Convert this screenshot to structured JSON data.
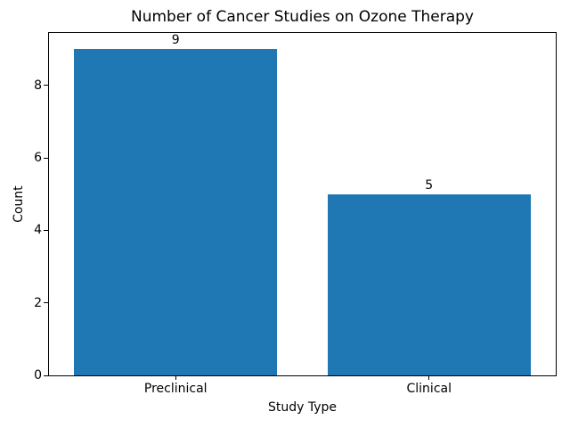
{
  "chart_data": {
    "type": "bar",
    "title": "Number of Cancer Studies on Ozone Therapy",
    "xlabel": "Study Type",
    "ylabel": "Count",
    "categories": [
      "Preclinical",
      "Clinical"
    ],
    "values": [
      9,
      5
    ],
    "bar_value_labels": [
      "9",
      "5"
    ],
    "yticks": [
      0,
      2,
      4,
      6,
      8
    ],
    "ylim": [
      0,
      9.45
    ],
    "xlim": [
      -0.5,
      1.5
    ],
    "bar_width_fraction": 0.8,
    "bar_color": "#1f77b4",
    "axis_color": "#000000",
    "text_color": "#000000",
    "background_color": "#ffffff",
    "grid": false,
    "legend": null
  }
}
